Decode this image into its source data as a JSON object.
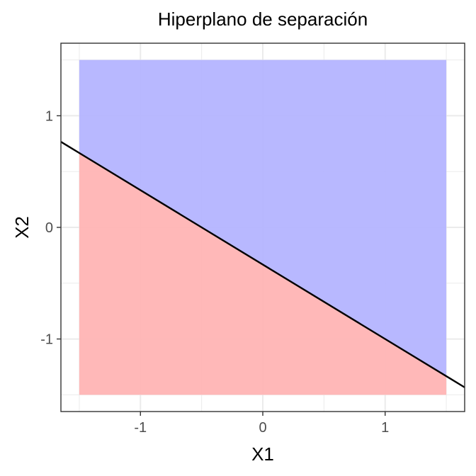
{
  "chart_data": {
    "type": "area",
    "title": "Hiperplano de separación",
    "xlabel": "X1",
    "ylabel": "X2",
    "xlim": [
      -1.65,
      1.65
    ],
    "ylim": [
      -1.65,
      1.65
    ],
    "x_ticks": [
      -1,
      0,
      1
    ],
    "y_ticks": [
      -1,
      0,
      1
    ],
    "x_tick_labels": [
      "-1",
      "0",
      "1"
    ],
    "y_tick_labels": [
      "-1",
      "0",
      "1"
    ],
    "grid": true,
    "panel_border": true,
    "region": {
      "x": [
        -1.5,
        1.5
      ],
      "y": [
        -1.5,
        1.5
      ]
    },
    "hyperplane": {
      "intercept": -0.3333,
      "slope": -0.6667
    },
    "colors": {
      "above": "#b2b2ff",
      "below": "#ffb2b2",
      "line": "#000000",
      "grid": "#ebebeb",
      "border": "#333333",
      "tick_text": "#4d4d4d"
    }
  }
}
